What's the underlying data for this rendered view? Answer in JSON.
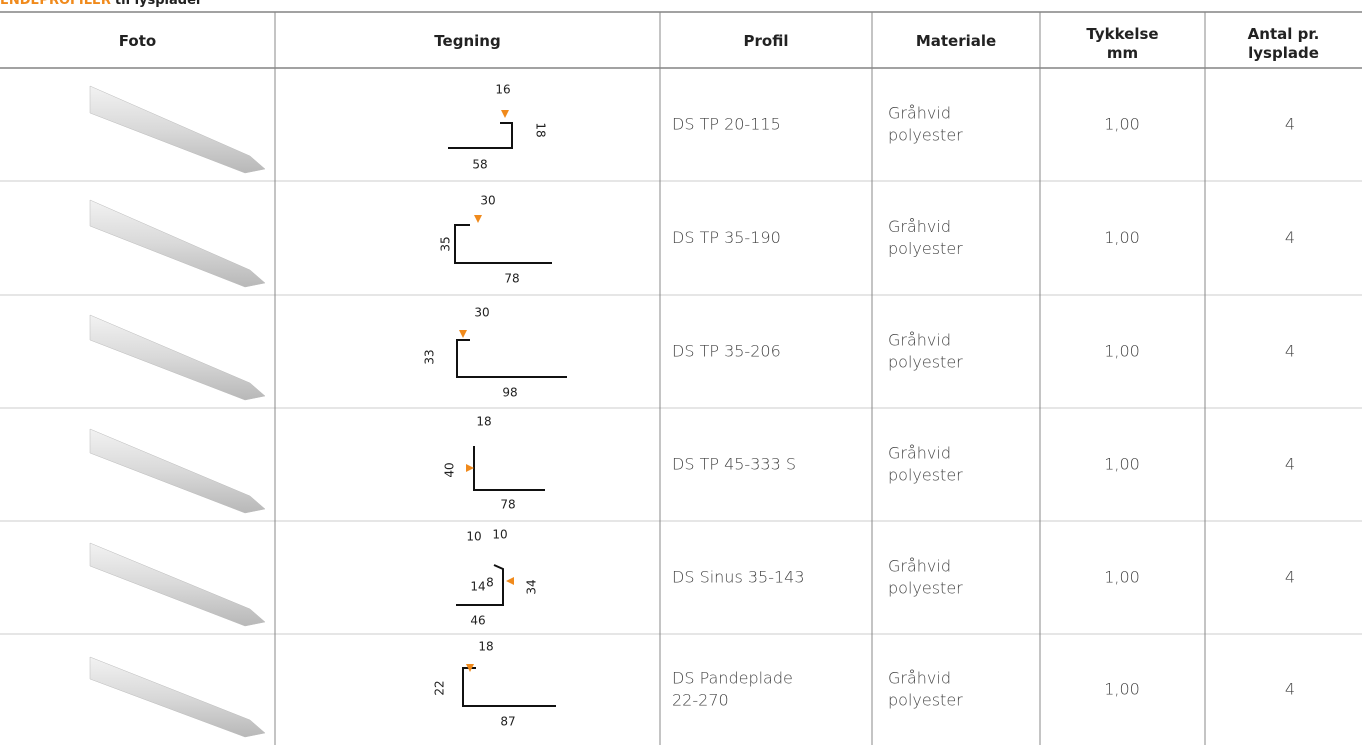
{
  "header": {
    "title_highlight": "ENDEPROFILER",
    "title_rest": "til lysplader"
  },
  "table": {
    "columns": [
      "Foto",
      "Tegning",
      "Profil",
      "Materiale",
      "Tykkelse mm",
      "Antal pr. lysplade"
    ],
    "rows": [
      {
        "drawing_labels": [
          "16",
          "18",
          "58"
        ],
        "profil": "DS TP 20-115",
        "materiale": "Gråhvid polyester",
        "tykkelse": "1,00",
        "antal": "4"
      },
      {
        "drawing_labels": [
          "30",
          "35",
          "78"
        ],
        "profil": "DS TP 35-190",
        "materiale": "Gråhvid polyester",
        "tykkelse": "1,00",
        "antal": "4"
      },
      {
        "drawing_labels": [
          "30",
          "33",
          "98"
        ],
        "profil": "DS TP 35-206",
        "materiale": "Gråhvid polyester",
        "tykkelse": "1,00",
        "antal": "4"
      },
      {
        "drawing_labels": [
          "18",
          "40",
          "78"
        ],
        "profil": "DS TP 45-333 S",
        "materiale": "Gråhvid polyester",
        "tykkelse": "1,00",
        "antal": "4"
      },
      {
        "drawing_labels": [
          "10",
          "10",
          "14",
          "8",
          "34",
          "46"
        ],
        "profil": "DS Sinus 35-143",
        "materiale": "Gråhvid polyester",
        "tykkelse": "1,00",
        "antal": "4"
      },
      {
        "drawing_labels": [
          "18",
          "22",
          "87"
        ],
        "profil": "DS Pandeplade 22-270",
        "materiale": "Gråhvid polyester",
        "tykkelse": "1,00",
        "antal": "4"
      }
    ]
  }
}
